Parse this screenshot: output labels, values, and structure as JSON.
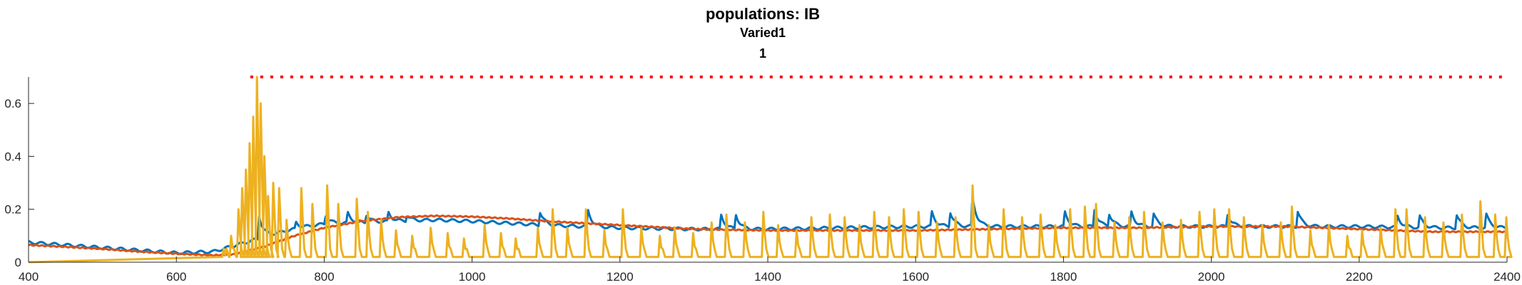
{
  "figure": {
    "title": "populations: IB",
    "subtitle": "Varied1",
    "subtitle2": "1"
  },
  "chart_data": {
    "type": "line",
    "title": "populations: IB",
    "subtitle": [
      "Varied1",
      "1"
    ],
    "xlabel": "",
    "ylabel": "",
    "xlim": [
      400,
      2400
    ],
    "ylim": [
      0,
      0.7
    ],
    "xticks": [
      400,
      600,
      800,
      1000,
      1200,
      1400,
      1600,
      1800,
      2000,
      2200,
      2400
    ],
    "xtick_labels": [
      "400",
      "600",
      "800",
      "1000",
      "1200",
      "1400",
      "1600",
      "1800",
      "2000",
      "2200",
      "2400"
    ],
    "yticks": [
      0,
      0.2,
      0.4,
      0.6
    ],
    "ytick_labels": [
      "0",
      "0.2",
      "0.4",
      "0.6"
    ],
    "grid": false,
    "legend": "none",
    "colors": {
      "blue": "#0072BD",
      "orange": "#D95319",
      "yellow": "#EDB120",
      "red": "#FF0000",
      "axis": "#262626"
    },
    "series": [
      {
        "color": "#0072BD",
        "style": "solid",
        "x": [
          400,
          600,
          650,
          700,
          750,
          800,
          850,
          900,
          950,
          1000,
          1100,
          1200,
          1300,
          1400,
          1500,
          1600,
          1700,
          1800,
          1900,
          2000,
          2100,
          2200,
          2300,
          2400
        ],
        "baseline": [
          0.075,
          0.035,
          0.04,
          0.08,
          0.12,
          0.145,
          0.15,
          0.155,
          0.16,
          0.155,
          0.14,
          0.13,
          0.125,
          0.125,
          0.13,
          0.135,
          0.135,
          0.135,
          0.135,
          0.135,
          0.135,
          0.135,
          0.13,
          0.13
        ],
        "spikes": [
          [
            710,
            0.21
          ],
          [
            760,
            0.16
          ],
          [
            800,
            0.19
          ],
          [
            830,
            0.2
          ],
          [
            855,
            0.19
          ],
          [
            885,
            0.2
          ],
          [
            910,
            0.185
          ],
          [
            1090,
            0.21
          ],
          [
            1155,
            0.22
          ],
          [
            1335,
            0.2
          ],
          [
            1355,
            0.2
          ],
          [
            1620,
            0.21
          ],
          [
            1645,
            0.21
          ],
          [
            1675,
            0.29
          ],
          [
            1800,
            0.21
          ],
          [
            1840,
            0.225
          ],
          [
            1860,
            0.2
          ],
          [
            1890,
            0.21
          ],
          [
            1920,
            0.2
          ],
          [
            2020,
            0.2
          ],
          [
            2115,
            0.215
          ],
          [
            2250,
            0.19
          ],
          [
            2280,
            0.19
          ],
          [
            2330,
            0.2
          ],
          [
            2370,
            0.2
          ]
        ]
      },
      {
        "color": "#D95319",
        "style": "solid",
        "x": [
          400,
          450,
          500,
          550,
          600,
          650,
          680,
          700,
          720,
          740,
          760,
          780,
          800,
          850,
          900,
          950,
          1000,
          1050,
          1100,
          1200,
          1300,
          1400,
          1500,
          1600,
          1700,
          1800,
          1900,
          2000,
          2100,
          2200,
          2300,
          2400
        ],
        "y": [
          0.065,
          0.058,
          0.05,
          0.04,
          0.032,
          0.026,
          0.03,
          0.045,
          0.06,
          0.08,
          0.1,
          0.115,
          0.13,
          0.155,
          0.17,
          0.175,
          0.172,
          0.165,
          0.155,
          0.14,
          0.125,
          0.12,
          0.12,
          0.12,
          0.125,
          0.13,
          0.13,
          0.135,
          0.135,
          0.125,
          0.115,
          0.115
        ]
      },
      {
        "color": "#EDB120",
        "style": "solid",
        "x": [
          400,
          600,
          640,
          660,
          670,
          680,
          690,
          700,
          705,
          710,
          715,
          720,
          730,
          740,
          760,
          800,
          900,
          1000,
          1100,
          1200,
          1300,
          1400,
          1500,
          1600,
          1700,
          1800,
          1900,
          2000,
          2100,
          2200,
          2300,
          2400
        ],
        "y": [
          0,
          0,
          0.005,
          0.02,
          0.06,
          0.15,
          0.35,
          0.55,
          0.65,
          0.7,
          0.55,
          0.3,
          0.18,
          0.28,
          0.12,
          0.25,
          0.2,
          0.18,
          0.2,
          0.2,
          0.17,
          0.16,
          0.19,
          0.2,
          0.29,
          0.22,
          0.2,
          0.2,
          0.22,
          0.2,
          0.23,
          0.18
        ],
        "burst_peaks": [
          [
            665,
            0.05
          ],
          [
            675,
            0.1
          ],
          [
            685,
            0.2
          ],
          [
            690,
            0.28
          ],
          [
            695,
            0.35
          ],
          [
            700,
            0.45
          ],
          [
            705,
            0.55
          ],
          [
            710,
            0.7
          ],
          [
            715,
            0.6
          ],
          [
            720,
            0.4
          ],
          [
            725,
            0.25
          ],
          [
            732,
            0.3
          ],
          [
            740,
            0.28
          ],
          [
            750,
            0.16
          ],
          [
            770,
            0.28
          ],
          [
            785,
            0.22
          ],
          [
            805,
            0.29
          ],
          [
            820,
            0.22
          ],
          [
            845,
            0.24
          ],
          [
            860,
            0.19
          ],
          [
            878,
            0.16
          ],
          [
            898,
            0.12
          ],
          [
            920,
            0.1
          ],
          [
            945,
            0.13
          ],
          [
            968,
            0.11
          ],
          [
            990,
            0.09
          ],
          [
            1018,
            0.14
          ],
          [
            1040,
            0.11
          ],
          [
            1060,
            0.09
          ],
          [
            1090,
            0.13
          ],
          [
            1110,
            0.2
          ],
          [
            1130,
            0.13
          ],
          [
            1155,
            0.2
          ],
          [
            1180,
            0.12
          ],
          [
            1205,
            0.2
          ],
          [
            1230,
            0.13
          ],
          [
            1255,
            0.1
          ],
          [
            1275,
            0.13
          ],
          [
            1300,
            0.11
          ],
          [
            1325,
            0.15
          ],
          [
            1345,
            0.18
          ],
          [
            1370,
            0.15
          ],
          [
            1395,
            0.19
          ],
          [
            1415,
            0.14
          ],
          [
            1440,
            0.12
          ],
          [
            1460,
            0.17
          ],
          [
            1485,
            0.18
          ],
          [
            1505,
            0.17
          ],
          [
            1525,
            0.14
          ],
          [
            1545,
            0.19
          ],
          [
            1565,
            0.17
          ],
          [
            1585,
            0.2
          ],
          [
            1605,
            0.19
          ],
          [
            1630,
            0.15
          ],
          [
            1655,
            0.17
          ],
          [
            1678,
            0.29
          ],
          [
            1700,
            0.14
          ],
          [
            1720,
            0.2
          ],
          [
            1745,
            0.17
          ],
          [
            1770,
            0.18
          ],
          [
            1790,
            0.14
          ],
          [
            1810,
            0.2
          ],
          [
            1830,
            0.21
          ],
          [
            1845,
            0.22
          ],
          [
            1870,
            0.15
          ],
          [
            1890,
            0.17
          ],
          [
            1910,
            0.19
          ],
          [
            1935,
            0.15
          ],
          [
            1960,
            0.16
          ],
          [
            1985,
            0.19
          ],
          [
            2005,
            0.2
          ],
          [
            2025,
            0.2
          ],
          [
            2045,
            0.17
          ],
          [
            2070,
            0.14
          ],
          [
            2095,
            0.15
          ],
          [
            2110,
            0.21
          ],
          [
            2135,
            0.12
          ],
          [
            2160,
            0.14
          ],
          [
            2185,
            0.1
          ],
          [
            2205,
            0.12
          ],
          [
            2230,
            0.13
          ],
          [
            2250,
            0.2
          ],
          [
            2265,
            0.2
          ],
          [
            2290,
            0.17
          ],
          [
            2315,
            0.15
          ],
          [
            2340,
            0.18
          ],
          [
            2365,
            0.23
          ],
          [
            2385,
            0.18
          ],
          [
            2400,
            0.17
          ]
        ]
      },
      {
        "color": "#FF0000",
        "style": "dotted",
        "x": [
          700,
          2400
        ],
        "y": [
          0.7,
          0.7
        ]
      }
    ]
  }
}
